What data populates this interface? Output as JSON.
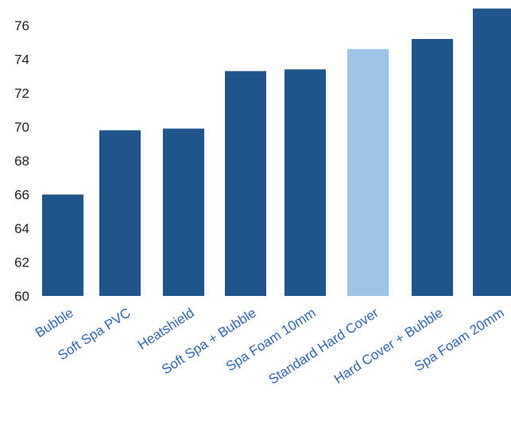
{
  "chart_data": {
    "type": "bar",
    "categories": [
      "Bubble",
      "Soft Spa PVC",
      "Heatshield",
      "Soft Spa + Bubble",
      "Spa Foam 10mm",
      "Standard Hard Cover",
      "Hard Cover + Bubble",
      "Spa Foam 20mm"
    ],
    "values": [
      66.0,
      69.8,
      69.9,
      73.3,
      73.4,
      74.6,
      75.2,
      77.0
    ],
    "highlight_category": "Standard Hard Cover",
    "ylim": [
      60,
      77
    ],
    "yticks": [
      60,
      62,
      64,
      66,
      68,
      70,
      72,
      74,
      76
    ],
    "title": "",
    "xlabel": "",
    "ylabel": "",
    "grid": false,
    "legend": "none",
    "colors": {
      "bar": "#1f558b",
      "highlight": "#9dc3e6",
      "category_label": "#2f66b0",
      "tick_label": "#222222"
    }
  }
}
